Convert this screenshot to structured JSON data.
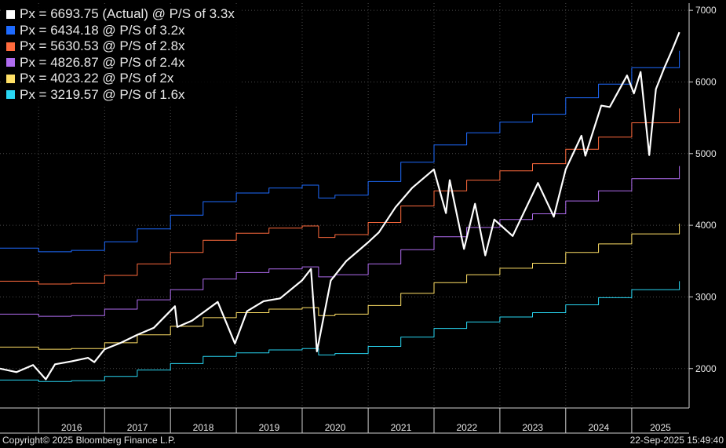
{
  "chart_data": {
    "type": "line",
    "x_axis": {
      "type": "date",
      "range": [
        "2015-06-01",
        "2025-11-15"
      ],
      "tick_labels": [
        "2016",
        "2017",
        "2018",
        "2019",
        "2020",
        "2021",
        "2022",
        "2023",
        "2024",
        "2025"
      ]
    },
    "y_axis": {
      "position": "right",
      "range": [
        1450,
        7100
      ],
      "tick_labels": [
        "2000",
        "3000",
        "4000",
        "5000",
        "6000",
        "7000"
      ]
    },
    "legend_placement": "top-left",
    "legend": [
      {
        "label": "Px = 6693.75 (Actual) @ P/S of 3.3x",
        "color": "#ffffff"
      },
      {
        "label": "Px = 6434.18 @ P/S of 3.2x",
        "color": "#1e6bff"
      },
      {
        "label": "Px = 5630.53 @ P/S of 2.8x",
        "color": "#ff6a3d"
      },
      {
        "label": "Px = 4826.87 @ P/S of 2.4x",
        "color": "#b06cf0"
      },
      {
        "label": "Px = 4023.22 @ P/S of 2x",
        "color": "#ffe066"
      },
      {
        "label": "Px = 3219.57 @ P/S of 1.6x",
        "color": "#29d6f2"
      }
    ],
    "series": [
      {
        "name": "Px = 6693.75 (Actual) @ P/S of 3.3x",
        "color": "#ffffff",
        "step": false,
        "width": 2.2,
        "points": [
          [
            "2015-06-01",
            2000
          ],
          [
            "2015-09-01",
            1950
          ],
          [
            "2015-12-01",
            2050
          ],
          [
            "2016-02-10",
            1850
          ],
          [
            "2016-04-01",
            2060
          ],
          [
            "2016-07-01",
            2100
          ],
          [
            "2016-10-01",
            2150
          ],
          [
            "2016-11-05",
            2090
          ],
          [
            "2017-01-01",
            2270
          ],
          [
            "2017-04-01",
            2360
          ],
          [
            "2017-07-01",
            2470
          ],
          [
            "2017-10-01",
            2570
          ],
          [
            "2018-01-26",
            2870
          ],
          [
            "2018-02-08",
            2580
          ],
          [
            "2018-05-01",
            2670
          ],
          [
            "2018-09-20",
            2930
          ],
          [
            "2018-12-24",
            2350
          ],
          [
            "2019-03-01",
            2800
          ],
          [
            "2019-06-01",
            2940
          ],
          [
            "2019-09-01",
            2980
          ],
          [
            "2019-12-31",
            3230
          ],
          [
            "2020-02-19",
            3390
          ],
          [
            "2020-03-23",
            2240
          ],
          [
            "2020-06-08",
            3230
          ],
          [
            "2020-09-01",
            3500
          ],
          [
            "2020-12-31",
            3760
          ],
          [
            "2021-03-01",
            3900
          ],
          [
            "2021-06-01",
            4250
          ],
          [
            "2021-09-01",
            4520
          ],
          [
            "2021-12-31",
            4780
          ],
          [
            "2022-03-08",
            4170
          ],
          [
            "2022-03-29",
            4630
          ],
          [
            "2022-06-16",
            3670
          ],
          [
            "2022-08-16",
            4300
          ],
          [
            "2022-10-12",
            3580
          ],
          [
            "2022-12-01",
            4080
          ],
          [
            "2023-03-13",
            3850
          ],
          [
            "2023-07-31",
            4590
          ],
          [
            "2023-10-27",
            4120
          ],
          [
            "2024-01-01",
            4780
          ],
          [
            "2024-03-28",
            5250
          ],
          [
            "2024-04-19",
            4970
          ],
          [
            "2024-07-16",
            5670
          ],
          [
            "2024-09-01",
            5650
          ],
          [
            "2024-12-06",
            6090
          ],
          [
            "2025-01-13",
            5840
          ],
          [
            "2025-02-19",
            6140
          ],
          [
            "2025-04-08",
            4980
          ],
          [
            "2025-05-15",
            5900
          ],
          [
            "2025-07-01",
            6200
          ],
          [
            "2025-08-15",
            6460
          ],
          [
            "2025-09-22",
            6693.75
          ]
        ]
      },
      {
        "name": "Px = 6434.18 @ P/S of 3.2x",
        "color": "#1e6bff",
        "step": true,
        "width": 1,
        "points": [
          [
            "2015-06-01",
            3680
          ],
          [
            "2016-01-01",
            3630
          ],
          [
            "2016-07-01",
            3650
          ],
          [
            "2017-01-01",
            3770
          ],
          [
            "2017-07-01",
            3950
          ],
          [
            "2018-01-01",
            4140
          ],
          [
            "2018-07-01",
            4330
          ],
          [
            "2019-01-01",
            4450
          ],
          [
            "2019-07-01",
            4520
          ],
          [
            "2020-01-01",
            4560
          ],
          [
            "2020-04-01",
            4380
          ],
          [
            "2020-07-01",
            4420
          ],
          [
            "2021-01-01",
            4610
          ],
          [
            "2021-07-01",
            4880
          ],
          [
            "2022-01-01",
            5120
          ],
          [
            "2022-07-01",
            5290
          ],
          [
            "2023-01-01",
            5440
          ],
          [
            "2023-07-01",
            5550
          ],
          [
            "2024-01-01",
            5780
          ],
          [
            "2024-07-01",
            5970
          ],
          [
            "2025-01-01",
            6200
          ],
          [
            "2025-09-22",
            6434.18
          ]
        ]
      },
      {
        "name": "Px = 5630.53 @ P/S of 2.8x",
        "color": "#ff6a3d",
        "step": true,
        "width": 1,
        "points": [
          [
            "2015-06-01",
            3220
          ],
          [
            "2016-01-01",
            3180
          ],
          [
            "2016-07-01",
            3190
          ],
          [
            "2017-01-01",
            3300
          ],
          [
            "2017-07-01",
            3460
          ],
          [
            "2018-01-01",
            3620
          ],
          [
            "2018-07-01",
            3790
          ],
          [
            "2019-01-01",
            3890
          ],
          [
            "2019-07-01",
            3960
          ],
          [
            "2020-01-01",
            3990
          ],
          [
            "2020-04-01",
            3830
          ],
          [
            "2020-07-01",
            3870
          ],
          [
            "2021-01-01",
            4040
          ],
          [
            "2021-07-01",
            4270
          ],
          [
            "2022-01-01",
            4480
          ],
          [
            "2022-07-01",
            4630
          ],
          [
            "2023-01-01",
            4760
          ],
          [
            "2023-07-01",
            4860
          ],
          [
            "2024-01-01",
            5060
          ],
          [
            "2024-07-01",
            5230
          ],
          [
            "2025-01-01",
            5430
          ],
          [
            "2025-09-22",
            5630.53
          ]
        ]
      },
      {
        "name": "Px = 4826.87 @ P/S of 2.4x",
        "color": "#b06cf0",
        "step": true,
        "width": 1,
        "points": [
          [
            "2015-06-01",
            2760
          ],
          [
            "2016-01-01",
            2730
          ],
          [
            "2016-07-01",
            2740
          ],
          [
            "2017-01-01",
            2830
          ],
          [
            "2017-07-01",
            2960
          ],
          [
            "2018-01-01",
            3100
          ],
          [
            "2018-07-01",
            3250
          ],
          [
            "2019-01-01",
            3340
          ],
          [
            "2019-07-01",
            3390
          ],
          [
            "2020-01-01",
            3420
          ],
          [
            "2020-04-01",
            3280
          ],
          [
            "2020-07-01",
            3310
          ],
          [
            "2021-01-01",
            3460
          ],
          [
            "2021-07-01",
            3660
          ],
          [
            "2022-01-01",
            3840
          ],
          [
            "2022-07-01",
            3970
          ],
          [
            "2023-01-01",
            4080
          ],
          [
            "2023-07-01",
            4160
          ],
          [
            "2024-01-01",
            4340
          ],
          [
            "2024-07-01",
            4480
          ],
          [
            "2025-01-01",
            4650
          ],
          [
            "2025-09-22",
            4826.87
          ]
        ]
      },
      {
        "name": "Px = 4023.22 @ P/S of 2x",
        "color": "#ffe066",
        "step": true,
        "width": 1,
        "points": [
          [
            "2015-06-01",
            2300
          ],
          [
            "2016-01-01",
            2270
          ],
          [
            "2016-07-01",
            2280
          ],
          [
            "2017-01-01",
            2360
          ],
          [
            "2017-07-01",
            2470
          ],
          [
            "2018-01-01",
            2590
          ],
          [
            "2018-07-01",
            2710
          ],
          [
            "2019-01-01",
            2780
          ],
          [
            "2019-07-01",
            2830
          ],
          [
            "2020-01-01",
            2850
          ],
          [
            "2020-04-01",
            2740
          ],
          [
            "2020-07-01",
            2760
          ],
          [
            "2021-01-01",
            2880
          ],
          [
            "2021-07-01",
            3050
          ],
          [
            "2022-01-01",
            3200
          ],
          [
            "2022-07-01",
            3310
          ],
          [
            "2023-01-01",
            3400
          ],
          [
            "2023-07-01",
            3470
          ],
          [
            "2024-01-01",
            3620
          ],
          [
            "2024-07-01",
            3740
          ],
          [
            "2025-01-01",
            3880
          ],
          [
            "2025-09-22",
            4023.22
          ]
        ]
      },
      {
        "name": "Px = 3219.57 @ P/S of 1.6x",
        "color": "#29d6f2",
        "step": true,
        "width": 1,
        "points": [
          [
            "2015-06-01",
            1840
          ],
          [
            "2016-01-01",
            1820
          ],
          [
            "2016-07-01",
            1830
          ],
          [
            "2017-01-01",
            1890
          ],
          [
            "2017-07-01",
            1980
          ],
          [
            "2018-01-01",
            2070
          ],
          [
            "2018-07-01",
            2170
          ],
          [
            "2019-01-01",
            2220
          ],
          [
            "2019-07-01",
            2260
          ],
          [
            "2020-01-01",
            2280
          ],
          [
            "2020-04-01",
            2190
          ],
          [
            "2020-07-01",
            2210
          ],
          [
            "2021-01-01",
            2310
          ],
          [
            "2021-07-01",
            2440
          ],
          [
            "2022-01-01",
            2560
          ],
          [
            "2022-07-01",
            2650
          ],
          [
            "2023-01-01",
            2720
          ],
          [
            "2023-07-01",
            2780
          ],
          [
            "2024-01-01",
            2890
          ],
          [
            "2024-07-01",
            2990
          ],
          [
            "2025-01-01",
            3100
          ],
          [
            "2025-09-22",
            3219.57
          ]
        ]
      }
    ]
  },
  "footer": {
    "copyright": "Copyright© 2025 Bloomberg Finance L.P.",
    "timestamp": "22-Sep-2025 15:49:40"
  }
}
